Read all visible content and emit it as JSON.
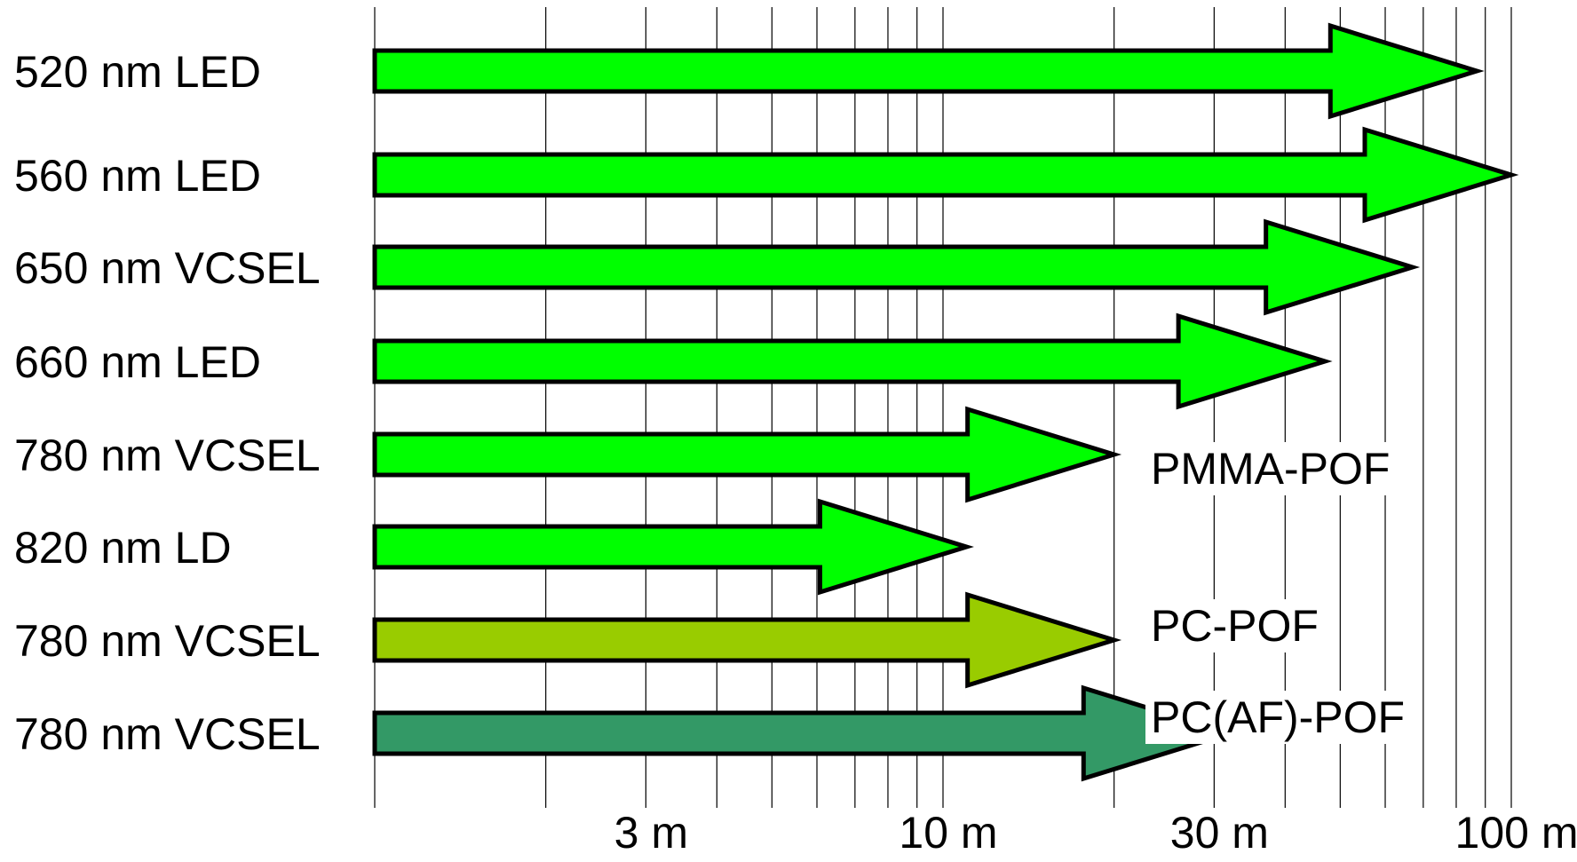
{
  "chart_data": {
    "type": "bar",
    "orientation": "horizontal",
    "x_scale": "log",
    "xlim": [
      1,
      100
    ],
    "x_unit": "m",
    "grid": "vertical",
    "x_tick_labels": [
      {
        "value": 3,
        "label": "3 m"
      },
      {
        "value": 10,
        "label": "10 m"
      },
      {
        "value": 30,
        "label": "30 m"
      },
      {
        "value": 100,
        "label": "100 m"
      }
    ],
    "categories": [
      "520 nm LED",
      "560 nm LED",
      "650 nm VCSEL",
      "660 nm LED",
      "780 nm VCSEL",
      "820 nm LD",
      "780 nm VCSEL",
      "780 nm VCSEL"
    ],
    "values": [
      87,
      100,
      67,
      47,
      20,
      11,
      20,
      32
    ],
    "groups": [
      {
        "name": "PMMA-POF",
        "rows": [
          0,
          1,
          2,
          3,
          4,
          5
        ],
        "color": "#00ff00"
      },
      {
        "name": "PC-POF",
        "rows": [
          6
        ],
        "color": "#99cc00"
      },
      {
        "name": "PC(AF)-POF",
        "rows": [
          7
        ],
        "color": "#339966"
      }
    ]
  }
}
